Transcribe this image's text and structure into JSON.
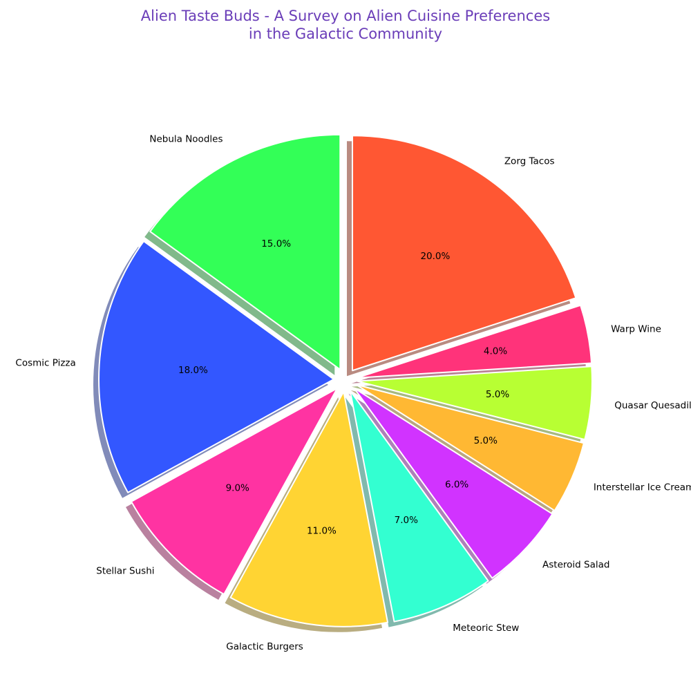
{
  "chart_data": {
    "type": "pie",
    "title": "Alien Taste Buds - A Survey on Alien Cuisine Preferences\nin the Galactic Community",
    "title_color": "#6a3db8",
    "start_angle_deg": 90,
    "direction": "clockwise",
    "shadow": true,
    "autopct_format": "1 decimal + %",
    "slices": [
      {
        "label": "Zorg Tacos",
        "value": 20.0,
        "pct_text": "20.0%",
        "color": "#ff5733",
        "explode": 0.05
      },
      {
        "label": "Warp Wine",
        "value": 4.0,
        "pct_text": "4.0%",
        "color": "#ff337a",
        "explode": 0.05
      },
      {
        "label": "Quasar Quesadillas",
        "value": 5.0,
        "pct_text": "5.0%",
        "color": "#b8ff33",
        "explode": 0.05
      },
      {
        "label": "Interstellar Ice Cream",
        "value": 5.0,
        "pct_text": "5.0%",
        "color": "#ffb833",
        "explode": 0.05
      },
      {
        "label": "Asteroid Salad",
        "value": 6.0,
        "pct_text": "6.0%",
        "color": "#d133ff",
        "explode": 0.05
      },
      {
        "label": "Meteoric Stew",
        "value": 7.0,
        "pct_text": "7.0%",
        "color": "#33ffd1",
        "explode": 0.05
      },
      {
        "label": "Galactic Burgers",
        "value": 11.0,
        "pct_text": "11.0%",
        "color": "#ffd433",
        "explode": 0.05
      },
      {
        "label": "Stellar Sushi",
        "value": 9.0,
        "pct_text": "9.0%",
        "color": "#ff33a2",
        "explode": 0.05
      },
      {
        "label": "Cosmic Pizza",
        "value": 18.0,
        "pct_text": "18.0%",
        "color": "#3357ff",
        "explode": 0.05
      },
      {
        "label": "Nebula Noodles",
        "value": 15.0,
        "pct_text": "15.0%",
        "color": "#33ff57",
        "explode": 0.05
      }
    ]
  }
}
